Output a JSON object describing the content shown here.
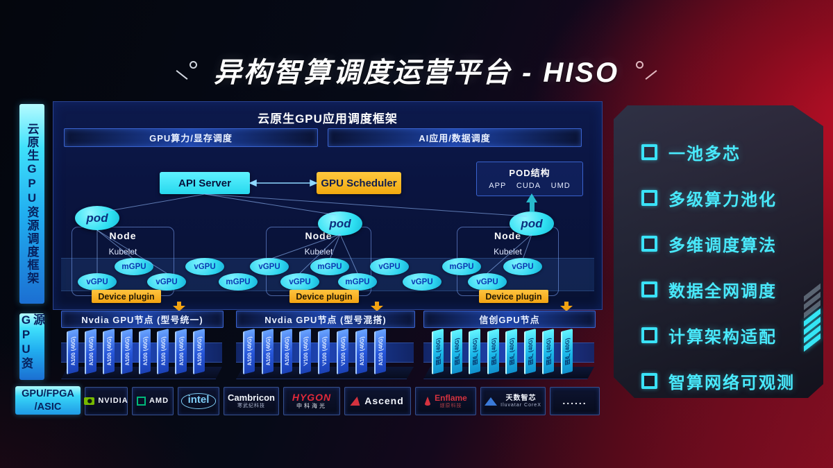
{
  "title": "异构智算调度运营平台 - HISO",
  "sidebar": {
    "framework_label": "云原生GPU资源调度框架",
    "gpu_resource_label": "GPU资源",
    "hardware": {
      "line1": "GPU/FPGA",
      "line2": "/ASIC"
    }
  },
  "framework": {
    "title": "云原生GPU应用调度框架",
    "sched_bars": [
      "GPU算力/显存调度",
      "AI应用/数据调度"
    ],
    "api_server_label": "API Server",
    "gpu_scheduler_label": "GPU Scheduler",
    "pod_struct": {
      "title": "POD结构",
      "items": [
        "APP",
        "CUDA",
        "UMD"
      ]
    },
    "pod_label": "pod",
    "nodes": [
      {
        "label": "Node",
        "sub": "Kubelet"
      },
      {
        "label": "Node",
        "sub": "Kubelet"
      },
      {
        "label": "Node",
        "sub": "Kubelet"
      }
    ],
    "gpu_ellipses": [
      "vGPU",
      "mGPU",
      "vGPU",
      "vGPU",
      "mGPU",
      "vGPU",
      "vGPU",
      "mGPU",
      "mGPU",
      "vGPU",
      "vGPU",
      "mGPU",
      "vGPU",
      "vGPU"
    ],
    "device_plugin_label": "Device plugin",
    "node_headers": [
      "Nvdia GPU节点 (型号统一)",
      "Nvdia GPU节点 (型号混搭)",
      "信创GPU节点"
    ]
  },
  "gpu_cards": {
    "left": [
      "A100 (40G)",
      "A100 (40G)",
      "A100 (40G)",
      "A100 (40G)",
      "A100 (40G)",
      "A100 (40G)",
      "A100 (40G)",
      "A100 (40G)"
    ],
    "middle": [
      "A100 (40G)",
      "A100 (40G)",
      "A100 (40G)",
      "V100 (40G)",
      "V100 (40G)",
      "V100 (40G)",
      "A100 (40G)",
      "A100 (40G)"
    ],
    "right": [
      "国产 (40G)",
      "国产 (40G)",
      "国产 (40G)",
      "国产 (40G)",
      "国产 (40G)",
      "国产 (40G)",
      "国产 (40G)",
      "国产 (40G)"
    ]
  },
  "vendors": [
    {
      "id": "nvidia",
      "name": "NVIDIA",
      "sub": ""
    },
    {
      "id": "amd",
      "name": "AMD",
      "sub": ""
    },
    {
      "id": "intel",
      "name": "intel",
      "sub": ""
    },
    {
      "id": "cambricon",
      "name": "Cambricon",
      "sub": "寒武纪科技"
    },
    {
      "id": "hygon",
      "name": "HYGON",
      "sub": "中科海光"
    },
    {
      "id": "ascend",
      "name": "Ascend",
      "sub": ""
    },
    {
      "id": "enflame",
      "name": "Enflame",
      "sub": "燧原科技"
    },
    {
      "id": "iluvatar",
      "name": "天数智芯",
      "sub": "Iluvatar CoreX"
    },
    {
      "id": "dots",
      "name": "......",
      "sub": ""
    }
  ],
  "features": [
    "一池多芯",
    "多级算力池化",
    "多维调度算法",
    "数据全网调度",
    "计算架构适配",
    "智算网络可观测"
  ],
  "colors": {
    "accent_cyan": "#35e6f5",
    "accent_orange": "#f2a312",
    "panel_blue": "#0d1a4c",
    "card_blue": "#2656da",
    "background_red": "#8c0d20"
  }
}
